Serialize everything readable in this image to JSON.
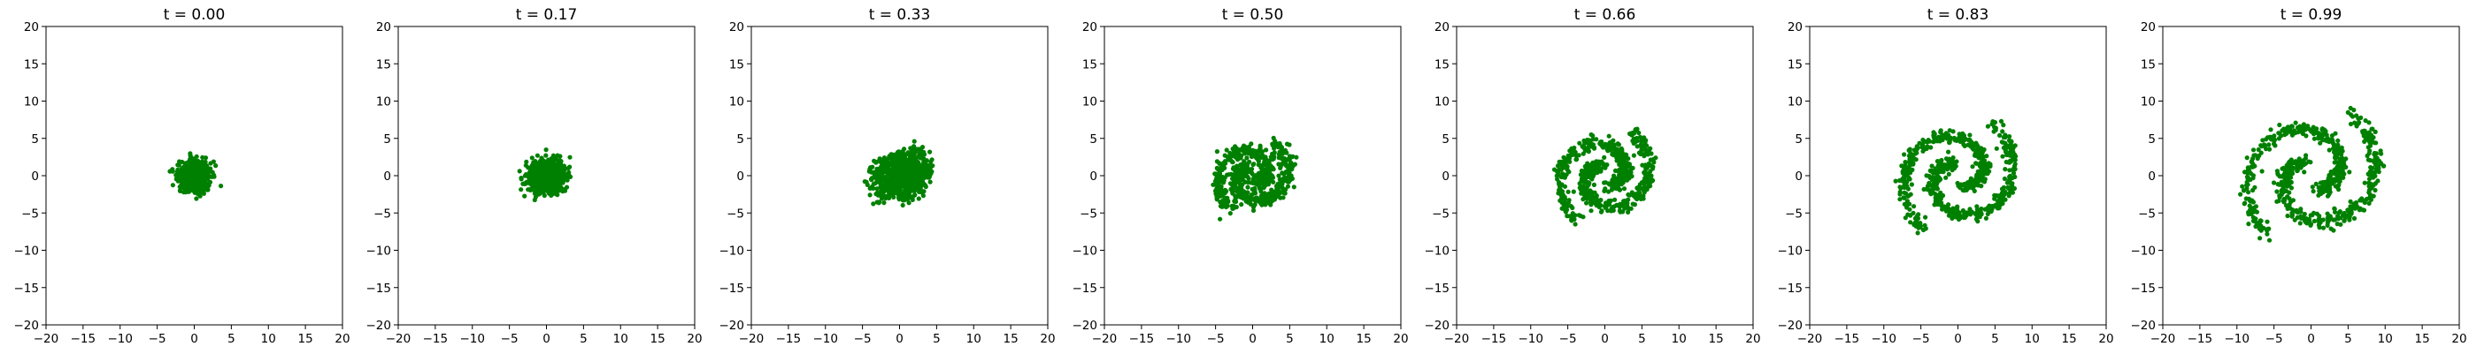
{
  "figure": {
    "point_color": "#008000",
    "background": "#ffffff"
  },
  "chart_data": [
    {
      "type": "scatter",
      "title": "t = 0.00",
      "xlim": [
        -20,
        20
      ],
      "ylim": [
        -20,
        20
      ],
      "xticks": [
        -20,
        -15,
        -10,
        -5,
        0,
        5,
        10,
        15,
        20
      ],
      "yticks": [
        -20,
        -15,
        -10,
        -5,
        0,
        5,
        10,
        15,
        20
      ],
      "grid": false,
      "spiral": {
        "t": 0.0
      }
    },
    {
      "type": "scatter",
      "title": "t = 0.17",
      "xlim": [
        -20,
        20
      ],
      "ylim": [
        -20,
        20
      ],
      "xticks": [
        -20,
        -15,
        -10,
        -5,
        0,
        5,
        10,
        15,
        20
      ],
      "yticks": [
        -20,
        -15,
        -10,
        -5,
        0,
        5,
        10,
        15,
        20
      ],
      "grid": false,
      "spiral": {
        "t": 0.17
      }
    },
    {
      "type": "scatter",
      "title": "t = 0.33",
      "xlim": [
        -20,
        20
      ],
      "ylim": [
        -20,
        20
      ],
      "xticks": [
        -20,
        -15,
        -10,
        -5,
        0,
        5,
        10,
        15,
        20
      ],
      "yticks": [
        -20,
        -15,
        -10,
        -5,
        0,
        5,
        10,
        15,
        20
      ],
      "grid": false,
      "spiral": {
        "t": 0.33
      }
    },
    {
      "type": "scatter",
      "title": "t = 0.50",
      "xlim": [
        -20,
        20
      ],
      "ylim": [
        -20,
        20
      ],
      "xticks": [
        -20,
        -15,
        -10,
        -5,
        0,
        5,
        10,
        15,
        20
      ],
      "yticks": [
        -20,
        -15,
        -10,
        -5,
        0,
        5,
        10,
        15,
        20
      ],
      "grid": false,
      "spiral": {
        "t": 0.5
      }
    },
    {
      "type": "scatter",
      "title": "t = 0.66",
      "xlim": [
        -20,
        20
      ],
      "ylim": [
        -20,
        20
      ],
      "xticks": [
        -20,
        -15,
        -10,
        -5,
        0,
        5,
        10,
        15,
        20
      ],
      "yticks": [
        -20,
        -15,
        -10,
        -5,
        0,
        5,
        10,
        15,
        20
      ],
      "grid": false,
      "spiral": {
        "t": 0.66
      }
    },
    {
      "type": "scatter",
      "title": "t = 0.83",
      "xlim": [
        -20,
        20
      ],
      "ylim": [
        -20,
        20
      ],
      "xticks": [
        -20,
        -15,
        -10,
        -5,
        0,
        5,
        10,
        15,
        20
      ],
      "yticks": [
        -20,
        -15,
        -10,
        -5,
        0,
        5,
        10,
        15,
        20
      ],
      "grid": false,
      "spiral": {
        "t": 0.83
      }
    },
    {
      "type": "scatter",
      "title": "t = 0.99",
      "xlim": [
        -20,
        20
      ],
      "ylim": [
        -20,
        20
      ],
      "xticks": [
        -20,
        -15,
        -10,
        -5,
        0,
        5,
        10,
        15,
        20
      ],
      "yticks": [
        -20,
        -15,
        -10,
        -5,
        0,
        5,
        10,
        15,
        20
      ],
      "grid": false,
      "spiral": {
        "t": 0.99
      }
    }
  ]
}
